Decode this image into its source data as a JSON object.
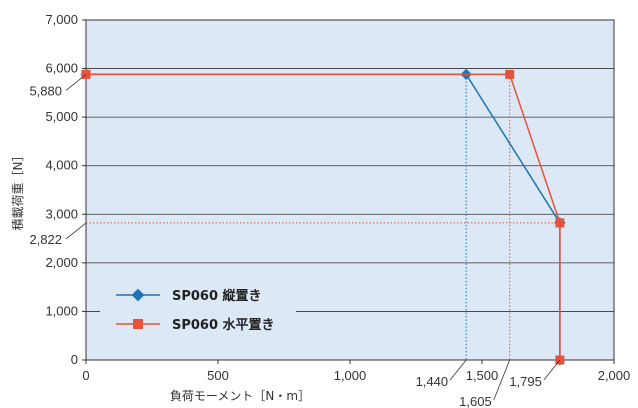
{
  "chart_data": {
    "type": "line",
    "xlabel": "負荷モーメント［N・m］",
    "ylabel": "積載荷重［N］",
    "xlim": [
      0,
      2000
    ],
    "ylim": [
      0,
      7000
    ],
    "x_ticks": [
      0,
      500,
      1000,
      1500,
      2000
    ],
    "x_tick_labels": [
      "0",
      "500",
      "1,000",
      "1,500",
      "2,000"
    ],
    "y_ticks": [
      0,
      1000,
      2000,
      3000,
      4000,
      5000,
      6000,
      7000
    ],
    "y_tick_labels": [
      "0",
      "1,000",
      "2,000",
      "3,000",
      "4,000",
      "5,000",
      "6,000",
      "7,000"
    ],
    "grid": "horizontal",
    "legend_position": "bottom-left",
    "series": [
      {
        "name": "SP060 縦置き",
        "color": "#1f74b5",
        "marker": "diamond",
        "points": [
          [
            0,
            5880
          ],
          [
            1440,
            5880
          ],
          [
            1795,
            2822
          ],
          [
            1795,
            0
          ]
        ]
      },
      {
        "name": "SP060 水平置き",
        "color": "#e5533a",
        "marker": "square",
        "points": [
          [
            0,
            5880
          ],
          [
            1605,
            5880
          ],
          [
            1795,
            2822
          ],
          [
            1795,
            0
          ]
        ]
      }
    ],
    "callouts_y": [
      {
        "value": 5880,
        "label": "5,880"
      },
      {
        "value": 2822,
        "label": "2,822"
      }
    ],
    "callouts_x": [
      {
        "value": 1440,
        "label": "1,440",
        "color": "#1f74b5"
      },
      {
        "value": 1605,
        "label": "1,605",
        "color": "#e5533a"
      },
      {
        "value": 1795,
        "label": "1,795",
        "color": "#e5533a"
      }
    ]
  }
}
